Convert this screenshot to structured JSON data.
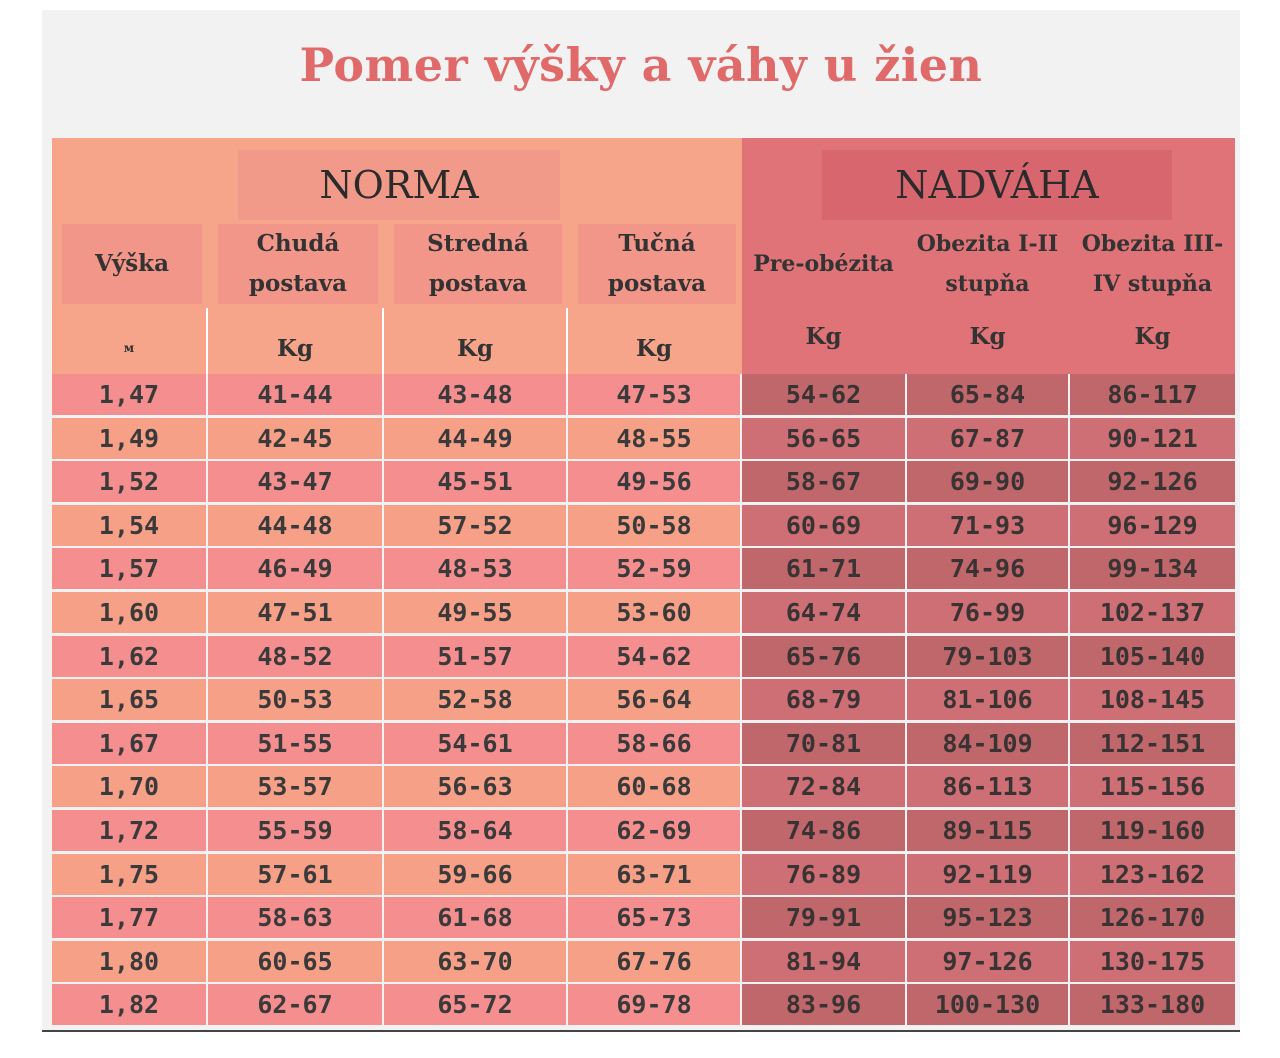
{
  "title": "Pomer výšky a váhy u žien",
  "groups": {
    "norma": "NORMA",
    "nadvaha": "NADVÁHA"
  },
  "columns": [
    {
      "header": "Výška",
      "unit": "м"
    },
    {
      "header": "Chudá\npostava",
      "unit": "Kg"
    },
    {
      "header": "Stredná\npostava",
      "unit": "Kg"
    },
    {
      "header": "Tučná\npostava",
      "unit": "Kg"
    },
    {
      "header": "Pre-obézita",
      "unit": "Kg"
    },
    {
      "header": "Obezita I-II\nstupňa",
      "unit": "Kg"
    },
    {
      "header": "Obezita III-\nIV stupňa",
      "unit": "Kg"
    }
  ],
  "rows": [
    [
      "1,47",
      "41-44",
      "43-48",
      "47-53",
      "54-62",
      "65-84",
      "86-117"
    ],
    [
      "1,49",
      "42-45",
      "44-49",
      "48-55",
      "56-65",
      "67-87",
      "90-121"
    ],
    [
      "1,52",
      "43-47",
      "45-51",
      "49-56",
      "58-67",
      "69-90",
      "92-126"
    ],
    [
      "1,54",
      "44-48",
      "57-52",
      "50-58",
      "60-69",
      "71-93",
      "96-129"
    ],
    [
      "1,57",
      "46-49",
      "48-53",
      "52-59",
      "61-71",
      "74-96",
      "99-134"
    ],
    [
      "1,60",
      "47-51",
      "49-55",
      "53-60",
      "64-74",
      "76-99",
      "102-137"
    ],
    [
      "1,62",
      "48-52",
      "51-57",
      "54-62",
      "65-76",
      "79-103",
      "105-140"
    ],
    [
      "1,65",
      "50-53",
      "52-58",
      "56-64",
      "68-79",
      "81-106",
      "108-145"
    ],
    [
      "1,67",
      "51-55",
      "54-61",
      "58-66",
      "70-81",
      "84-109",
      "112-151"
    ],
    [
      "1,70",
      "53-57",
      "56-63",
      "60-68",
      "72-84",
      "86-113",
      "115-156"
    ],
    [
      "1,72",
      "55-59",
      "58-64",
      "62-69",
      "74-86",
      "89-115",
      "119-160"
    ],
    [
      "1,75",
      "57-61",
      "59-66",
      "63-71",
      "76-89",
      "92-119",
      "123-162"
    ],
    [
      "1,77",
      "58-63",
      "61-68",
      "65-73",
      "79-91",
      "95-123",
      "126-170"
    ],
    [
      "1,80",
      "60-65",
      "63-70",
      "67-76",
      "81-94",
      "97-126",
      "130-175"
    ],
    [
      "1,82",
      "62-67",
      "65-72",
      "69-78",
      "83-96",
      "100-130",
      "133-180"
    ]
  ],
  "colors": {
    "title": "#e06a6a",
    "norma_header": "#f6a48a",
    "nadvaha_header": "#df7377",
    "norma_row_a": "#f58f8f",
    "norma_row_b": "#f6a088",
    "nadvaha_row_a": "#c0676c",
    "nadvaha_row_b": "#cd6f74"
  }
}
